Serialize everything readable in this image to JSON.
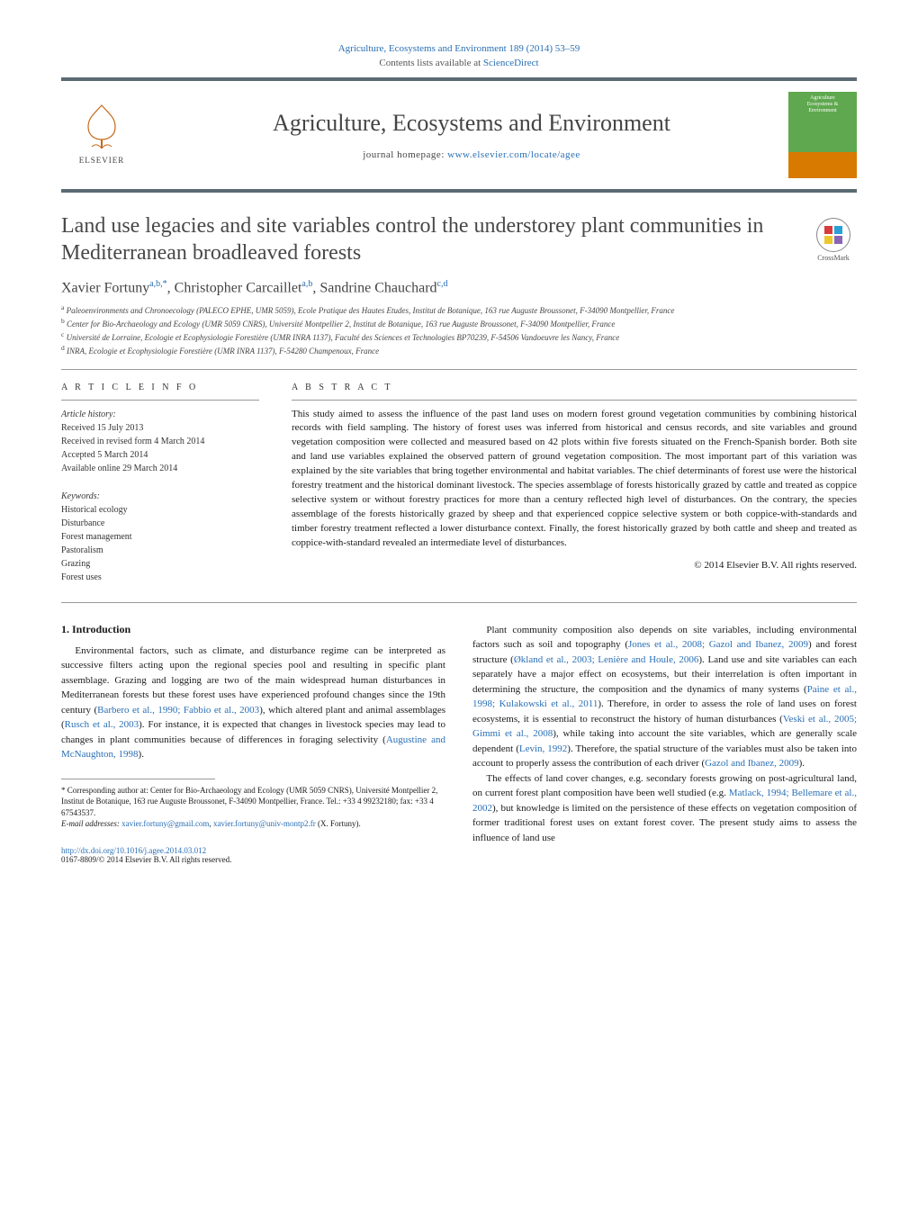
{
  "header": {
    "citation": "Agriculture, Ecosystems and Environment 189 (2014) 53–59",
    "contents_prefix": "Contents lists available at ",
    "contents_link": "ScienceDirect",
    "journal_title": "Agriculture, Ecosystems and Environment",
    "homepage_prefix": "journal homepage: ",
    "homepage_url": "www.elsevier.com/locate/agee",
    "elsevier_label": "ELSEVIER",
    "cover_line1": "Agriculture",
    "cover_line2": "Ecosystems &",
    "cover_line3": "Environment",
    "crossmark_label": "CrossMark"
  },
  "article": {
    "title": "Land use legacies and site variables control the understorey plant communities in Mediterranean broadleaved forests",
    "authors_html": "Xavier Fortuny<sup>a,b,*</sup>, Christopher Carcaillet<sup>a,b</sup>, Sandrine Chauchard<sup>c,d</sup>",
    "affiliations": [
      "<sup>a</sup> Paleoenvironments and Chronoecology (PALECO EPHE, UMR 5059), Ecole Pratique des Hautes Etudes, Institut de Botanique, 163 rue Auguste Broussonet, F-34090 Montpellier, France",
      "<sup>b</sup> Center for Bio-Archaeology and Ecology (UMR 5059 CNRS), Université Montpellier 2, Institut de Botanique, 163 rue Auguste Broussonet, F-34090 Montpellier, France",
      "<sup>c</sup> Université de Lorraine, Ecologie et Ecophysiologie Forestière (UMR INRA 1137), Faculté des Sciences et Technologies BP70239, F-54506 Vandoeuvre les Nancy, France",
      "<sup>d</sup> INRA, Ecologie et Ecophysiologie Forestière (UMR INRA 1137), F-54280 Champenoux, France"
    ]
  },
  "info": {
    "heading": "A R T I C L E   I N F O",
    "history_label": "Article history:",
    "history": [
      "Received 15 July 2013",
      "Received in revised form 4 March 2014",
      "Accepted 5 March 2014",
      "Available online 29 March 2014"
    ],
    "keywords_label": "Keywords:",
    "keywords": [
      "Historical ecology",
      "Disturbance",
      "Forest management",
      "Pastoralism",
      "Grazing",
      "Forest uses"
    ]
  },
  "abstract": {
    "heading": "A B S T R A C T",
    "text": "This study aimed to assess the influence of the past land uses on modern forest ground vegetation communities by combining historical records with field sampling. The history of forest uses was inferred from historical and census records, and site variables and ground vegetation composition were collected and measured based on 42 plots within five forests situated on the French-Spanish border. Both site and land use variables explained the observed pattern of ground vegetation composition. The most important part of this variation was explained by the site variables that bring together environmental and habitat variables. The chief determinants of forest use were the historical forestry treatment and the historical dominant livestock. The species assemblage of forests historically grazed by cattle and treated as coppice selective system or without forestry practices for more than a century reflected high level of disturbances. On the contrary, the species assemblage of the forests historically grazed by sheep and that experienced coppice selective system or both coppice-with-standards and timber forestry treatment reflected a lower disturbance context. Finally, the forest historically grazed by both cattle and sheep and treated as coppice-with-standard revealed an intermediate level of disturbances.",
    "copyright": "© 2014 Elsevier B.V. All rights reserved."
  },
  "intro": {
    "heading": "1. Introduction",
    "para1_pre": "Environmental factors, such as climate, and disturbance regime can be interpreted as successive filters acting upon the regional species pool and resulting in specific plant assemblage. Grazing and logging are two of the main widespread human disturbances in Mediterranean forests but these forest uses have experienced profound changes since the 19th century (",
    "cite1": "Barbero et al., 1990; Fabbio et al., 2003",
    "para1_mid": "), which altered plant and animal assemblages (",
    "cite2": "Rusch et al., 2003",
    "para1_mid2": "). For instance, it is expected that changes in livestock species may lead to changes in plant communities because of differences in foraging selectivity (",
    "cite3": "Augustine and McNaughton, 1998",
    "para1_end": ").",
    "para2_pre": "Plant community composition also depends on site variables, including environmental factors such as soil and topography (",
    "cite4": "Jones et al., 2008; Gazol and Ibanez, 2009",
    "para2_m1": ") and forest structure (",
    "cite5": "Økland et al., 2003; Lenière and Houle, 2006",
    "para2_m2": "). Land use and site variables can each separately have a major effect on ecosystems, but their interrelation is often important in determining the structure, the composition and the dynamics of many systems (",
    "cite6": "Paine et al., 1998; Kulakowski et al., 2011",
    "para2_m3": "). Therefore, in order to assess the role of land uses on forest ecosystems, it is essential to reconstruct the history of human disturbances (",
    "cite7": "Veski et al., 2005; Gimmi et al., 2008",
    "para2_m4": "), while taking into account the site variables, which are generally scale dependent (",
    "cite8": "Levin, 1992",
    "para2_m5": "). Therefore, the spatial structure of the variables must also be taken into account to properly assess the contribution of each driver (",
    "cite9": "Gazol and Ibanez, 2009",
    "para2_end": ").",
    "para3_pre": "The effects of land cover changes, e.g. secondary forests growing on post-agricultural land, on current forest plant composition have been well studied (e.g. ",
    "cite10": "Matlack, 1994; Bellemare et al., 2002",
    "para3_end": "), but knowledge is limited on the persistence of these effects on vegetation composition of former traditional forest uses on extant forest cover. The present study aims to assess the influence of land use"
  },
  "footnotes": {
    "corr_marker": "*",
    "corr_text": " Corresponding author at: Center for Bio-Archaeology and Ecology (UMR 5059 CNRS), Université Montpellier 2, Institut de Botanique, 163 rue Auguste Broussonet, F-34090 Montpellier, France. Tel.: +33 4 99232180; fax: +33 4 67543537.",
    "email_label": "E-mail addresses: ",
    "email1": "xavier.fortuny@gmail.com",
    "email_sep": ", ",
    "email2": "xavier.fortuny@univ-montp2.fr",
    "email_name": " (X. Fortuny)."
  },
  "footer": {
    "doi": "http://dx.doi.org/10.1016/j.agee.2014.03.012",
    "issn_line": "0167-8809/© 2014 Elsevier B.V. All rights reserved."
  },
  "style": {
    "accent_color": "#2a6fb5",
    "bar_color": "#5b6a73",
    "cover_green": "#5fa84f",
    "cover_orange": "#d97a00",
    "text_color": "#1a1a1a",
    "body_fontsize": 11,
    "title_fontsize": 24,
    "journal_fontsize": 26
  }
}
